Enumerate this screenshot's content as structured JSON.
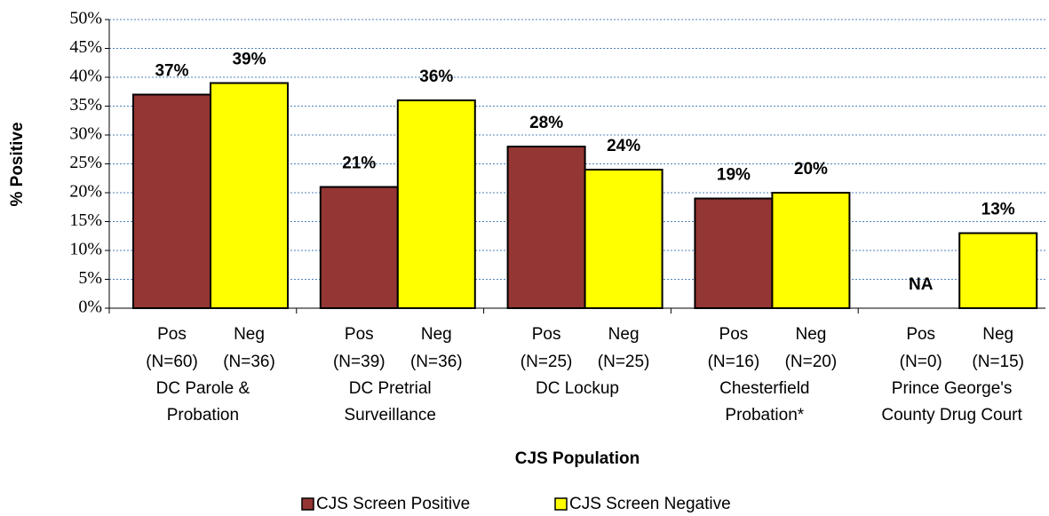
{
  "chart_data": {
    "type": "bar",
    "x_label": "CJS Population",
    "y_label": "% Positive",
    "categories": [
      [
        "DC Parole &",
        "Probation"
      ],
      [
        "DC Pretrial",
        "Surveillance"
      ],
      [
        "DC Lockup"
      ],
      [
        "Chesterfield",
        "Probation*"
      ],
      [
        "Prince George's",
        "County Drug Court"
      ]
    ],
    "series": [
      {
        "name": "CJS Screen Positive",
        "short_label": "Pos",
        "color": "#943634",
        "counts": [
          "(N=60)",
          "(N=39)",
          "(N=25)",
          "(N=16)",
          "(N=0)"
        ],
        "values": [
          37,
          21,
          28,
          19,
          null
        ],
        "value_labels": [
          "37%",
          "21%",
          "28%",
          "19%",
          "NA"
        ]
      },
      {
        "name": "CJS Screen Negative",
        "short_label": "Neg",
        "color": "#ffff00",
        "counts": [
          "(N=36)",
          "(N=36)",
          "(N=25)",
          "(N=20)",
          "(N=15)"
        ],
        "values": [
          39,
          36,
          24,
          20,
          13
        ],
        "value_labels": [
          "39%",
          "36%",
          "24%",
          "20%",
          "13%"
        ]
      }
    ],
    "ylim": [
      0,
      50
    ],
    "yticks": [
      {
        "value": 0,
        "label": "0%"
      },
      {
        "value": 5,
        "label": "5%"
      },
      {
        "value": 10,
        "label": "10%"
      },
      {
        "value": 15,
        "label": "15%"
      },
      {
        "value": 20,
        "label": "20%"
      },
      {
        "value": 25,
        "label": "25%"
      },
      {
        "value": 30,
        "label": "30%"
      },
      {
        "value": 35,
        "label": "35%"
      },
      {
        "value": 40,
        "label": "40%"
      },
      {
        "value": 45,
        "label": "45%"
      },
      {
        "value": 50,
        "label": "50%"
      }
    ],
    "grid": true,
    "legend": "bottom"
  }
}
